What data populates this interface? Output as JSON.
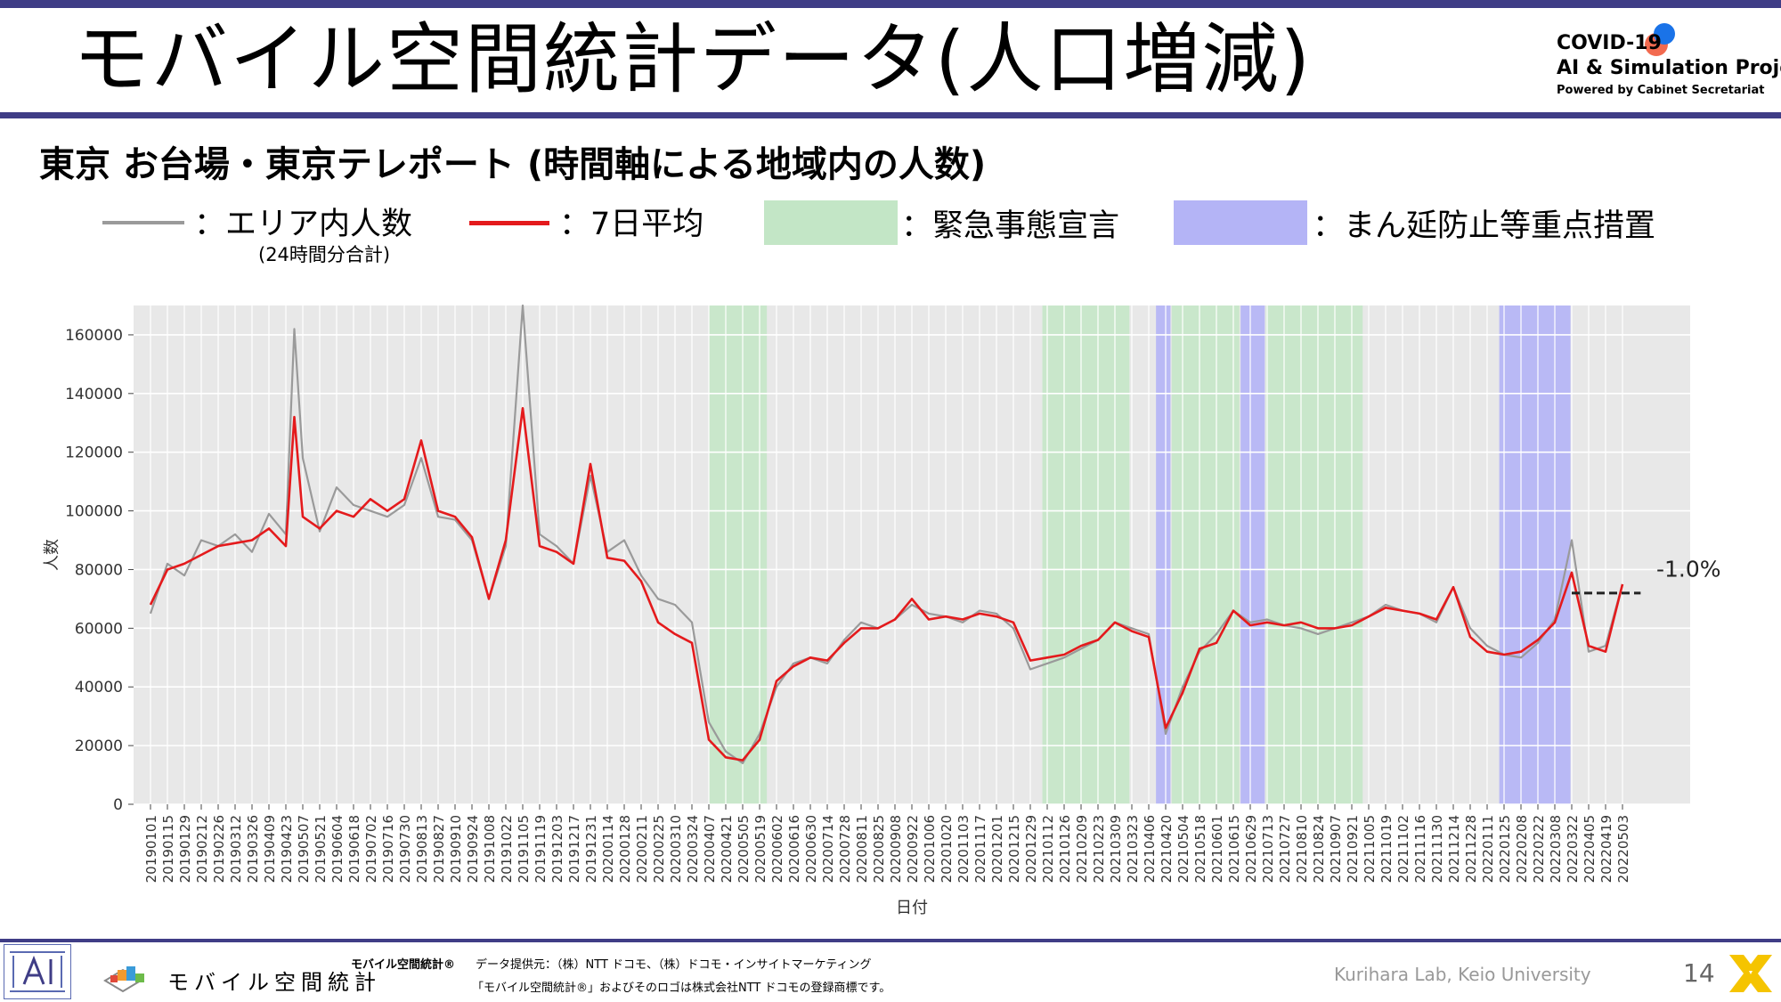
{
  "page": {
    "title": "モバイル空間統計データ(人口増減)",
    "subtitle": "東京 お台場・東京テレポート (時間軸による地域内の人数)",
    "logo": {
      "line1": "COVID-19",
      "line2": "AI & Simulation Project",
      "line3": "Powered by Cabinet Secretariat"
    },
    "legend": {
      "area_label": "：エリア内人数",
      "area_note": "(24時間分合計)",
      "avg_label": "：7日平均",
      "emergency_label": "：緊急事態宣言",
      "priority_label": "：まん延防止等重点措置"
    },
    "footer": {
      "brand": "モバイル空間統計",
      "brand_mark": "モバイル空間統計®",
      "provider": "データ提供元：（株）NTT ドコモ、（株）ドコモ・インサイトマーケティング",
      "trademark": "「モバイル空間統計®」およびそのロゴは株式会社NTT ドコモの登録商標です。",
      "lab": "Kurihara Lab, Keio University",
      "page_number": "14"
    },
    "colors": {
      "accent": "#3f3d86",
      "emergency": "#c3e6c6",
      "priority": "#b4b4f6",
      "raw": "#9a9a9a",
      "avg": "#e41a1c"
    },
    "icons": [
      "ai-logo-icon",
      "mobile-blocks-icon",
      "x-logo-icon",
      "covid-dot-icon"
    ]
  },
  "chart_data": {
    "type": "line",
    "xlabel": "日付",
    "ylabel": "人数",
    "ylim": [
      0,
      170000
    ],
    "yticks": [
      0,
      20000,
      40000,
      60000,
      80000,
      100000,
      120000,
      140000,
      160000
    ],
    "grid": true,
    "x_tick_labels": [
      "20190101",
      "20190115",
      "20190129",
      "20190212",
      "20190226",
      "20190312",
      "20190326",
      "20190409",
      "20190423",
      "20190507",
      "20190521",
      "20190604",
      "20190618",
      "20190702",
      "20190716",
      "20190730",
      "20190813",
      "20190827",
      "20190910",
      "20190924",
      "20191008",
      "20191022",
      "20191105",
      "20191119",
      "20191203",
      "20191217",
      "20191231",
      "20200114",
      "20200128",
      "20200211",
      "20200225",
      "20200310",
      "20200324",
      "20200407",
      "20200421",
      "20200505",
      "20200519",
      "20200602",
      "20200616",
      "20200630",
      "20200714",
      "20200728",
      "20200811",
      "20200825",
      "20200908",
      "20200922",
      "20201006",
      "20201020",
      "20201103",
      "20201117",
      "20201201",
      "20201215",
      "20201229",
      "20210112",
      "20210126",
      "20210209",
      "20210223",
      "20210309",
      "20210323",
      "20210406",
      "20210420",
      "20210504",
      "20210518",
      "20210601",
      "20210615",
      "20210629",
      "20210713",
      "20210727",
      "20210810",
      "20210824",
      "20210907",
      "20210921",
      "20211005",
      "20211019",
      "20211102",
      "20211116",
      "20211130",
      "20211214",
      "20211228",
      "20220111",
      "20220125",
      "20220208",
      "20220222",
      "20220308",
      "20220322",
      "20220405",
      "20220419",
      "20220503"
    ],
    "shaded_periods": [
      {
        "type": "emergency",
        "start": "20200407",
        "end": "20200525"
      },
      {
        "type": "emergency",
        "start": "20210108",
        "end": "20210321"
      },
      {
        "type": "priority",
        "start": "20210412",
        "end": "20210424"
      },
      {
        "type": "emergency",
        "start": "20210425",
        "end": "20210620"
      },
      {
        "type": "priority",
        "start": "20210621",
        "end": "20210711"
      },
      {
        "type": "emergency",
        "start": "20210712",
        "end": "20210930"
      },
      {
        "type": "priority",
        "start": "20220121",
        "end": "20220321"
      }
    ],
    "series": [
      {
        "key": "raw",
        "x": [
          "20190101",
          "20190115",
          "20190129",
          "20190212",
          "20190226",
          "20190312",
          "20190326",
          "20190409",
          "20190423",
          "20190430",
          "20190507",
          "20190521",
          "20190604",
          "20190618",
          "20190702",
          "20190716",
          "20190730",
          "20190813",
          "20190827",
          "20190910",
          "20190924",
          "20191008",
          "20191022",
          "20191105",
          "20191119",
          "20191203",
          "20191217",
          "20191231",
          "20200114",
          "20200128",
          "20200211",
          "20200225",
          "20200310",
          "20200324",
          "20200407",
          "20200421",
          "20200505",
          "20200519",
          "20200602",
          "20200616",
          "20200630",
          "20200714",
          "20200728",
          "20200811",
          "20200825",
          "20200908",
          "20200922",
          "20201006",
          "20201020",
          "20201103",
          "20201117",
          "20201201",
          "20201215",
          "20201229",
          "20210112",
          "20210126",
          "20210209",
          "20210223",
          "20210309",
          "20210323",
          "20210406",
          "20210420",
          "20210504",
          "20210518",
          "20210601",
          "20210615",
          "20210629",
          "20210713",
          "20210727",
          "20210810",
          "20210824",
          "20210907",
          "20210921",
          "20211005",
          "20211019",
          "20211102",
          "20211116",
          "20211130",
          "20211214",
          "20211228",
          "20220111",
          "20220125",
          "20220208",
          "20220222",
          "20220308",
          "20220322",
          "20220405",
          "20220419",
          "20220503"
        ],
        "y": [
          65000,
          82000,
          78000,
          90000,
          88000,
          92000,
          86000,
          99000,
          92000,
          162000,
          118000,
          93000,
          108000,
          102000,
          100000,
          98000,
          102000,
          118000,
          98000,
          97000,
          90000,
          70000,
          88000,
          170000,
          92000,
          88000,
          82000,
          112000,
          86000,
          90000,
          78000,
          70000,
          68000,
          62000,
          28000,
          18000,
          14000,
          24000,
          40000,
          48000,
          50000,
          48000,
          56000,
          62000,
          60000,
          63000,
          68000,
          65000,
          64000,
          62000,
          66000,
          65000,
          60000,
          46000,
          48000,
          50000,
          53000,
          56000,
          62000,
          60000,
          58000,
          24000,
          40000,
          52000,
          58000,
          66000,
          62000,
          63000,
          61000,
          60000,
          58000,
          60000,
          62000,
          64000,
          68000,
          66000,
          65000,
          62000,
          74000,
          60000,
          54000,
          51000,
          50000,
          55000,
          63000,
          90000,
          52000,
          54000,
          75000
        ]
      },
      {
        "key": "avg",
        "x": [
          "20190101",
          "20190115",
          "20190129",
          "20190212",
          "20190226",
          "20190312",
          "20190326",
          "20190409",
          "20190423",
          "20190430",
          "20190507",
          "20190521",
          "20190604",
          "20190618",
          "20190702",
          "20190716",
          "20190730",
          "20190813",
          "20190827",
          "20190910",
          "20190924",
          "20191008",
          "20191022",
          "20191105",
          "20191119",
          "20191203",
          "20191217",
          "20191231",
          "20200114",
          "20200128",
          "20200211",
          "20200225",
          "20200310",
          "20200324",
          "20200407",
          "20200421",
          "20200505",
          "20200519",
          "20200602",
          "20200616",
          "20200630",
          "20200714",
          "20200728",
          "20200811",
          "20200825",
          "20200908",
          "20200922",
          "20201006",
          "20201020",
          "20201103",
          "20201117",
          "20201201",
          "20201215",
          "20201229",
          "20210112",
          "20210126",
          "20210209",
          "20210223",
          "20210309",
          "20210323",
          "20210406",
          "20210420",
          "20210504",
          "20210518",
          "20210601",
          "20210615",
          "20210629",
          "20210713",
          "20210727",
          "20210810",
          "20210824",
          "20210907",
          "20210921",
          "20211005",
          "20211019",
          "20211102",
          "20211116",
          "20211130",
          "20211214",
          "20211228",
          "20220111",
          "20220125",
          "20220208",
          "20220222",
          "20220308",
          "20220322",
          "20220405",
          "20220419",
          "20220503"
        ],
        "y": [
          68000,
          80000,
          82000,
          85000,
          88000,
          89000,
          90000,
          94000,
          88000,
          132000,
          98000,
          94000,
          100000,
          98000,
          104000,
          100000,
          104000,
          124000,
          100000,
          98000,
          91000,
          70000,
          90000,
          135000,
          88000,
          86000,
          82000,
          116000,
          84000,
          83000,
          76000,
          62000,
          58000,
          55000,
          22000,
          16000,
          15000,
          22000,
          42000,
          47000,
          50000,
          49000,
          55000,
          60000,
          60000,
          63000,
          70000,
          63000,
          64000,
          63000,
          65000,
          64000,
          62000,
          49000,
          50000,
          51000,
          54000,
          56000,
          62000,
          59000,
          57000,
          26000,
          38000,
          53000,
          55000,
          66000,
          61000,
          62000,
          61000,
          62000,
          60000,
          60000,
          61000,
          64000,
          67000,
          66000,
          65000,
          63000,
          74000,
          57000,
          52000,
          51000,
          52000,
          56000,
          62000,
          79000,
          54000,
          52000,
          75000
        ]
      }
    ],
    "baseline": {
      "value": 72000,
      "start": "20220322",
      "end": "20220518"
    },
    "annotations": [
      {
        "text": "-1.0%",
        "x": "20220503",
        "y": 80000
      }
    ]
  }
}
